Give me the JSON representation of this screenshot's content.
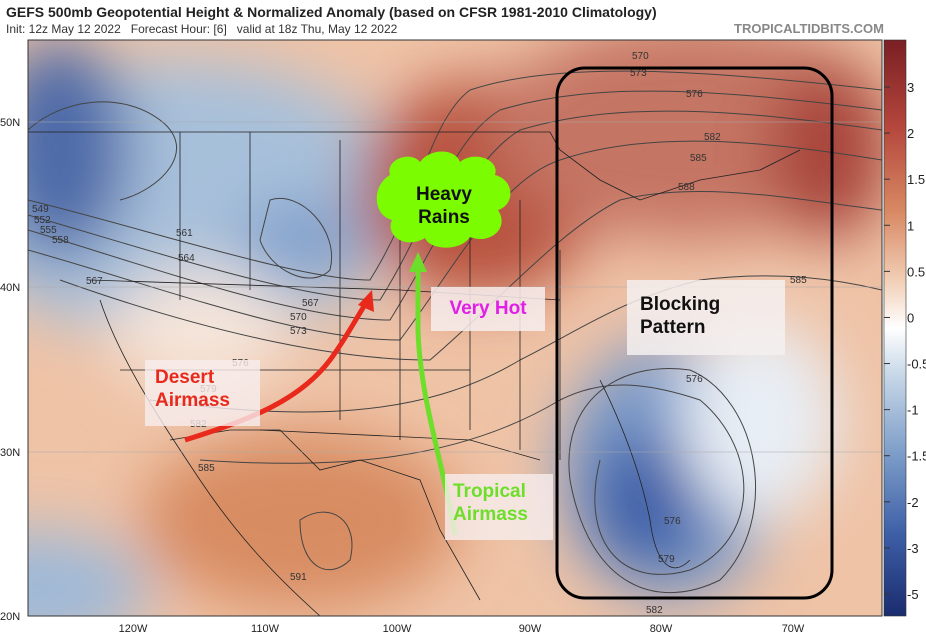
{
  "header": {
    "title": "GEFS 500mb Geopotential Height & Normalized Anomaly (based on CFSR 1981-2010 Climatology)",
    "subtitle": "Init: 12z May 12 2022   Forecast Hour: [6]   valid at 18z Thu, May 12 2022",
    "source": "TROPICALTIDBITS.COM"
  },
  "map": {
    "lat_labels": [
      "50N",
      "40N",
      "30N",
      "20N"
    ],
    "lon_labels": [
      "120W",
      "110W",
      "100W",
      "90W",
      "80W",
      "70W"
    ],
    "contour_labels": [
      "549",
      "552",
      "555",
      "558",
      "561",
      "564",
      "567",
      "567",
      "570",
      "573",
      "576",
      "579",
      "582",
      "585",
      "591",
      "570",
      "573",
      "576",
      "582",
      "585",
      "588",
      "585",
      "576",
      "576",
      "579",
      "582"
    ],
    "annotations": {
      "heavy_rains": "Heavy Rains",
      "very_hot": "Very Hot",
      "blocking": "Blocking Pattern",
      "desert": "Desert Airmass",
      "tropical": "Tropical Airmass"
    }
  },
  "colorbar": {
    "ticks": [
      3,
      2,
      1.5,
      1,
      0.5,
      0,
      -0.5,
      -1,
      -1.5,
      -2,
      -3,
      -5
    ]
  }
}
